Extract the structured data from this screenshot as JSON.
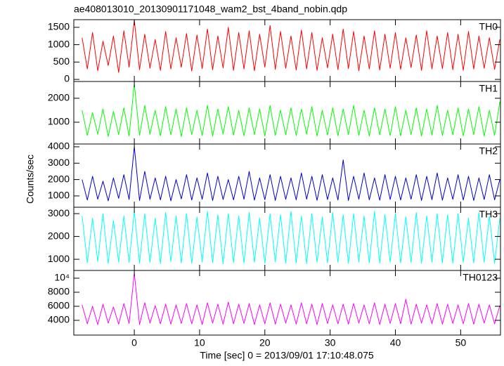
{
  "chart_data": {
    "type": "line",
    "title": "ae408013010_20130901171048_wam2_bst_4band_nobin.qdp",
    "xlabel": "Time [sec] 0 = 2013/09/01 17:10:48.075",
    "ylabel": "Counts/sec",
    "xlim": [
      -9.27,
      56.1
    ],
    "xticks": [
      0,
      10,
      20,
      30,
      40,
      50
    ],
    "x": [
      -8,
      -7.2,
      -6.4,
      -5.6,
      -4.8,
      -4,
      -3.2,
      -2.4,
      -1.6,
      -0.8,
      0,
      0.8,
      1.6,
      2.4,
      3.2,
      4,
      4.8,
      5.6,
      6.4,
      7.2,
      8,
      8.8,
      9.6,
      10.4,
      11.2,
      12,
      12.8,
      13.6,
      14.4,
      15.2,
      16,
      16.8,
      17.6,
      18.4,
      19.2,
      20,
      20.8,
      21.6,
      22.4,
      23.2,
      24,
      24.8,
      25.6,
      26.4,
      27.2,
      28,
      28.8,
      29.6,
      30.4,
      31.2,
      32,
      32.8,
      33.6,
      34.4,
      35.2,
      36,
      36.8,
      37.6,
      38.4,
      39.2,
      40,
      40.8,
      41.6,
      42.4,
      43.2,
      44,
      44.8,
      45.6,
      46.4,
      47.2,
      48,
      48.8,
      49.6,
      50.4,
      51.2,
      52,
      52.8,
      53.6,
      54.4,
      55.2,
      56
    ],
    "panels": [
      {
        "name": "TH0",
        "color": "#ff0000",
        "ylim": [
          -60,
          1720
        ],
        "yticks": [
          0,
          500,
          1000,
          1500
        ],
        "values": [
          1200,
          300,
          1350,
          250,
          1100,
          400,
          1250,
          200,
          1400,
          350,
          1700,
          280,
          1300,
          320,
          1150,
          260,
          1380,
          300,
          1200,
          350,
          1320,
          240,
          1280,
          310,
          1450,
          280,
          1250,
          330,
          1500,
          260,
          1350,
          300,
          1400,
          250,
          1300,
          350,
          1550,
          290,
          1380,
          320,
          1250,
          270,
          1420,
          300,
          1350,
          260,
          1200,
          330,
          1300,
          280,
          1450,
          310,
          1380,
          250,
          1250,
          300,
          1400,
          270,
          1300,
          320,
          1350,
          290,
          1200,
          340,
          1280,
          260,
          1400,
          300,
          1250,
          310,
          1350,
          280,
          1300,
          260,
          1380,
          300,
          1250,
          320,
          1200,
          290,
          1150
        ]
      },
      {
        "name": "TH1",
        "color": "#00ff00",
        "ylim": [
          90,
          2700
        ],
        "yticks": [
          1000,
          2000
        ],
        "values": [
          1500,
          450,
          1400,
          500,
          1550,
          400,
          1450,
          480,
          1600,
          420,
          2600,
          450,
          1700,
          500,
          1500,
          430,
          1650,
          470,
          1550,
          400,
          1600,
          480,
          1500,
          440,
          1700,
          420,
          1550,
          500,
          1650,
          460,
          1500,
          430,
          1600,
          480,
          1550,
          420,
          1700,
          450,
          1500,
          470,
          1600,
          440,
          1550,
          500,
          1650,
          420,
          1500,
          460,
          1600,
          430,
          1550,
          480,
          1700,
          450,
          1500,
          420,
          1600,
          470,
          1550,
          440,
          1650,
          430,
          1500,
          480,
          1600,
          420,
          1550,
          460,
          1700,
          440,
          1500,
          470,
          1600,
          430,
          1550,
          480,
          1650,
          420,
          1500,
          450,
          1850
        ]
      },
      {
        "name": "TH2",
        "color": "#0000cc",
        "ylim": [
          310,
          4170
        ],
        "yticks": [
          1000,
          2000,
          3000,
          4000
        ],
        "values": [
          2000,
          750,
          2200,
          800,
          1900,
          700,
          2100,
          850,
          2300,
          780,
          4000,
          720,
          2500,
          800,
          2100,
          760,
          2200,
          700,
          2000,
          820,
          2300,
          750,
          2100,
          800,
          2400,
          720,
          2200,
          780,
          2000,
          760,
          2200,
          800,
          2500,
          740,
          2100,
          770,
          2300,
          720,
          2200,
          790,
          2100,
          760,
          2400,
          800,
          2200,
          730,
          2300,
          780,
          2100,
          750,
          3200,
          720,
          2200,
          800,
          2400,
          760,
          2100,
          740,
          2300,
          780,
          2200,
          750,
          2100,
          800,
          2300,
          720,
          2200,
          770,
          2400,
          740,
          2100,
          790,
          2300,
          750,
          2200,
          720,
          2100,
          780,
          2300,
          760,
          2000
        ]
      },
      {
        "name": "TH3",
        "color": "#00ffff",
        "ylim": [
          510,
          3280
        ],
        "yticks": [
          1000,
          2000,
          3000
        ],
        "values": [
          2900,
          850,
          2800,
          900,
          3000,
          820,
          2700,
          880,
          2900,
          860,
          3100,
          830,
          3000,
          870,
          2800,
          810,
          3050,
          900,
          2900,
          840,
          3000,
          820,
          2850,
          880,
          3100,
          850,
          2950,
          800,
          3000,
          860,
          2900,
          840,
          3050,
          870,
          2800,
          820,
          3000,
          890,
          2950,
          830,
          3100,
          850,
          2900,
          810,
          3000,
          870,
          2850,
          840,
          3050,
          860,
          2950,
          820,
          3000,
          880,
          2900,
          850,
          3100,
          830,
          2950,
          870,
          3000,
          840,
          2850,
          860,
          3050,
          820,
          2900,
          880,
          3000,
          850,
          2950,
          830,
          3000,
          870,
          2800,
          840,
          3050,
          860,
          2900,
          820,
          2800
        ]
      },
      {
        "name": "TH0123",
        "color": "#ff00ff",
        "ylim": [
          1900,
          11100
        ],
        "yticks": [
          4000,
          6000,
          8000,
          {
            "value": 10000,
            "label": "10⁴"
          }
        ],
        "values": [
          6200,
          3500,
          6000,
          3400,
          6300,
          3600,
          5900,
          3450,
          6400,
          3550,
          10700,
          3400,
          6500,
          3600,
          6100,
          3500,
          6300,
          3450,
          6200,
          3550,
          6400,
          3500,
          6200,
          3400,
          6500,
          3600,
          6300,
          3450,
          6600,
          3500,
          6300,
          3550,
          6400,
          3400,
          6200,
          3500,
          6500,
          3450,
          6300,
          3600,
          6200,
          3450,
          6500,
          3500,
          6300,
          3400,
          6400,
          3550,
          6200,
          3500,
          6300,
          3450,
          6400,
          3600,
          6200,
          3500,
          6500,
          3400,
          6300,
          3550,
          6400,
          3500,
          7000,
          3450,
          6300,
          3600,
          6200,
          3500,
          6400,
          3450,
          6300,
          3550,
          6200,
          3500,
          6400,
          3450,
          6300,
          3600,
          6200,
          3500,
          6100
        ]
      }
    ]
  }
}
